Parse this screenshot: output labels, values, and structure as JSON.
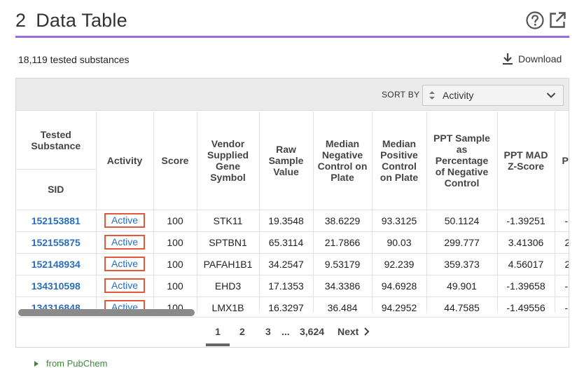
{
  "section": {
    "number": "2",
    "title": "Data Table"
  },
  "icons": {
    "help": "help-circle-icon",
    "external": "external-link-icon",
    "download": "download-icon"
  },
  "summary": {
    "count_text": "18,119 tested substances",
    "download_label": "Download"
  },
  "sort": {
    "label": "SORT BY",
    "value": "Activity"
  },
  "table": {
    "group_header": "Tested Substance",
    "columns": [
      "SID",
      "Activity",
      "Score",
      "Vendor Supplied Gene Symbol",
      "Raw Sample Value",
      "Median Negative Control on Plate",
      "Median Positive Control on Plate",
      "PPT Sample as Percentage of Negative Control",
      "PPT MAD Z-Score",
      "P M"
    ],
    "rows": [
      [
        "152153881",
        "Active",
        "100",
        "STK11",
        "19.3548",
        "38.6229",
        "93.3125",
        "50.1124",
        "-1.39251",
        "-"
      ],
      [
        "152155875",
        "Active",
        "100",
        "SPTBN1",
        "65.3114",
        "21.7866",
        "90.03",
        "299.777",
        "3.41306",
        "2"
      ],
      [
        "152148934",
        "Active",
        "100",
        "PAFAH1B1",
        "34.2547",
        "9.53179",
        "92.239",
        "359.373",
        "4.56017",
        "2"
      ],
      [
        "134310598",
        "Active",
        "100",
        "EHD3",
        "17.1353",
        "34.3386",
        "94.6928",
        "49.901",
        "-1.39658",
        "-"
      ],
      [
        "134316848",
        "Active",
        "100",
        "LMX1B",
        "16.3297",
        "36.484",
        "94.2952",
        "44.7585",
        "-1.49556",
        "-"
      ]
    ]
  },
  "pagination": {
    "pages": [
      "1",
      "2",
      "3"
    ],
    "ellipsis": "...",
    "last": "3,624",
    "next": "Next",
    "current": "1"
  },
  "source": {
    "label": "from PubChem"
  },
  "colors": {
    "accent": "#9b6ee0",
    "link": "#2a6ebb",
    "badge_border": "#e0593a",
    "source": "#3a8a3a"
  }
}
